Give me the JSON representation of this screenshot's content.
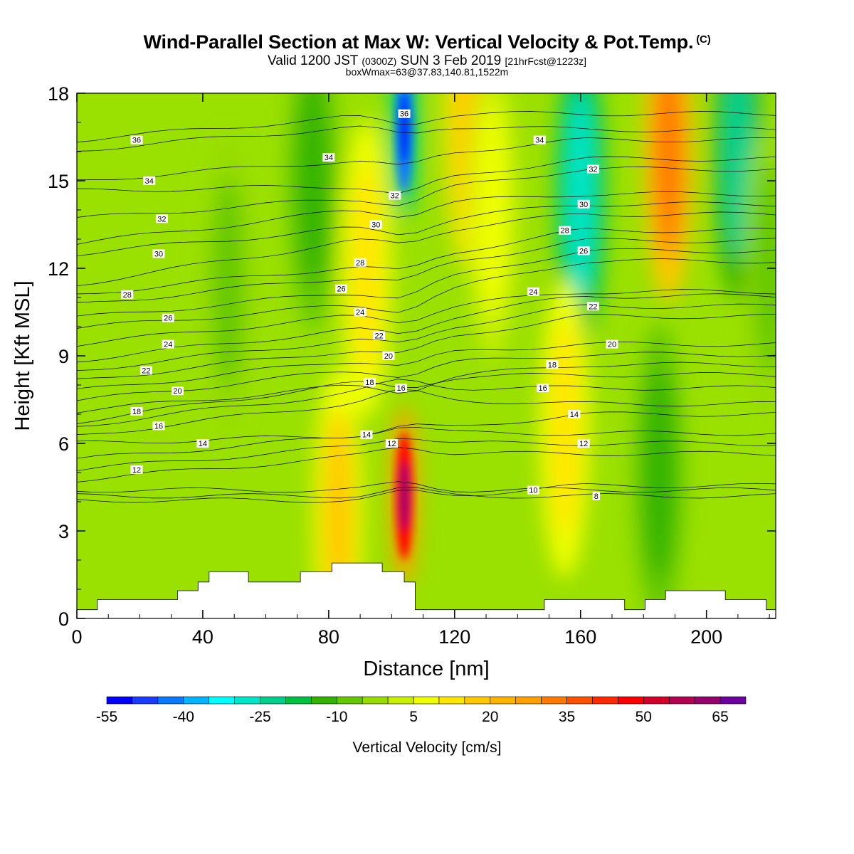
{
  "title": {
    "main": "Wind-Parallel Section at Max W: Vertical Velocity & Pot.Temp.",
    "copyright": "(C)",
    "valid_prefix": "Valid 1200 JST",
    "utc_time": "(0300Z)",
    "valid_suffix": "SUN 3 Feb 2019",
    "forecast": "[21hrFcst@1223z]",
    "box": "boxWmax=63@37.83,140.81,1522m"
  },
  "chart_data": {
    "type": "heatmap",
    "xlabel": "Distance [nm]",
    "ylabel": "Height [Kft MSL]",
    "xlim": [
      0,
      222
    ],
    "ylim": [
      0,
      18
    ],
    "x_ticks": [
      0,
      40,
      80,
      120,
      160,
      200
    ],
    "y_ticks": [
      0,
      3,
      6,
      9,
      12,
      15,
      18
    ],
    "colorbar": {
      "label": "Vertical Velocity [cm/s]",
      "levels": [
        -55,
        -50,
        -45,
        -40,
        -35,
        -30,
        -25,
        -20,
        -15,
        -10,
        -5,
        0,
        5,
        10,
        15,
        20,
        25,
        30,
        35,
        40,
        45,
        50,
        55,
        60,
        65,
        70
      ],
      "tick_labels": [
        "-55",
        "-40",
        "-25",
        "-10",
        "5",
        "20",
        "35",
        "50",
        "65"
      ],
      "colors": [
        "#0000ff",
        "#1a3cff",
        "#0a78ff",
        "#00b4ff",
        "#00ffff",
        "#00e6c8",
        "#00d08c",
        "#00c040",
        "#32b400",
        "#64c800",
        "#96dc00",
        "#c8f000",
        "#f0ff00",
        "#ffe600",
        "#ffc800",
        "#ffb400",
        "#ffa000",
        "#ff7800",
        "#ff5000",
        "#ff2800",
        "#ff0000",
        "#d20028",
        "#b40050",
        "#96006e",
        "#6e00a0"
      ]
    },
    "w_max": 63,
    "vertical_velocity_features": [
      {
        "x": 104,
        "y": 4.2,
        "w": 63
      },
      {
        "x": 104,
        "y": 16.8,
        "w": -55
      },
      {
        "x": 160,
        "y": 14.5,
        "w": -40
      },
      {
        "x": 188,
        "y": 16.0,
        "w": 40
      },
      {
        "x": 48,
        "y": 11.5,
        "w": -10
      },
      {
        "x": 75,
        "y": 15.0,
        "w": -15
      },
      {
        "x": 92,
        "y": 12.0,
        "w": 15
      },
      {
        "x": 210,
        "y": 16.0,
        "w": -30
      },
      {
        "x": 185,
        "y": 5.0,
        "w": -15
      },
      {
        "x": 83,
        "y": 3.5,
        "w": 20
      },
      {
        "x": 125,
        "y": 17.0,
        "w": 25
      },
      {
        "x": 155,
        "y": 6.5,
        "w": 15
      },
      {
        "x": 132,
        "y": 14.0,
        "w": 10
      },
      {
        "x": 220,
        "y": 12.0,
        "w": -10
      }
    ],
    "theta_contour_labels": [
      {
        "x": 19,
        "y": 16.4,
        "label": "36"
      },
      {
        "x": 23,
        "y": 15.0,
        "label": "34"
      },
      {
        "x": 27,
        "y": 13.7,
        "label": "32"
      },
      {
        "x": 26,
        "y": 12.5,
        "label": "30"
      },
      {
        "x": 16,
        "y": 11.1,
        "label": "28"
      },
      {
        "x": 29,
        "y": 10.3,
        "label": "26"
      },
      {
        "x": 29,
        "y": 9.4,
        "label": "24"
      },
      {
        "x": 22,
        "y": 8.5,
        "label": "22"
      },
      {
        "x": 32,
        "y": 7.8,
        "label": "20"
      },
      {
        "x": 19,
        "y": 7.1,
        "label": "18"
      },
      {
        "x": 26,
        "y": 6.6,
        "label": "16"
      },
      {
        "x": 40,
        "y": 6.0,
        "label": "14"
      },
      {
        "x": 19,
        "y": 5.1,
        "label": "12"
      },
      {
        "x": 104,
        "y": 17.3,
        "label": "36"
      },
      {
        "x": 80,
        "y": 15.8,
        "label": "34"
      },
      {
        "x": 101,
        "y": 14.5,
        "label": "32"
      },
      {
        "x": 95,
        "y": 13.5,
        "label": "30"
      },
      {
        "x": 90,
        "y": 12.2,
        "label": "28"
      },
      {
        "x": 84,
        "y": 11.3,
        "label": "26"
      },
      {
        "x": 90,
        "y": 10.5,
        "label": "24"
      },
      {
        "x": 96,
        "y": 9.7,
        "label": "22"
      },
      {
        "x": 99,
        "y": 9.0,
        "label": "20"
      },
      {
        "x": 93,
        "y": 8.1,
        "label": "18"
      },
      {
        "x": 103,
        "y": 7.9,
        "label": "16"
      },
      {
        "x": 92,
        "y": 6.3,
        "label": "14"
      },
      {
        "x": 100,
        "y": 6.0,
        "label": "12"
      },
      {
        "x": 147,
        "y": 16.4,
        "label": "34"
      },
      {
        "x": 164,
        "y": 15.4,
        "label": "32"
      },
      {
        "x": 161,
        "y": 14.2,
        "label": "30"
      },
      {
        "x": 155,
        "y": 13.3,
        "label": "28"
      },
      {
        "x": 161,
        "y": 12.6,
        "label": "26"
      },
      {
        "x": 145,
        "y": 11.2,
        "label": "24"
      },
      {
        "x": 164,
        "y": 10.7,
        "label": "22"
      },
      {
        "x": 170,
        "y": 9.4,
        "label": "20"
      },
      {
        "x": 151,
        "y": 8.7,
        "label": "18"
      },
      {
        "x": 148,
        "y": 7.9,
        "label": "16"
      },
      {
        "x": 158,
        "y": 7.0,
        "label": "14"
      },
      {
        "x": 161,
        "y": 6.0,
        "label": "12"
      },
      {
        "x": 145,
        "y": 4.4,
        "label": "10"
      },
      {
        "x": 165,
        "y": 4.2,
        "label": "8"
      }
    ],
    "terrain": [
      [
        0,
        0.3
      ],
      [
        6.5,
        0.3
      ],
      [
        6.5,
        0.65
      ],
      [
        32,
        0.65
      ],
      [
        32,
        0.95
      ],
      [
        38.5,
        0.95
      ],
      [
        38.5,
        1.25
      ],
      [
        42,
        1.25
      ],
      [
        42,
        1.6
      ],
      [
        54.5,
        1.6
      ],
      [
        54.5,
        1.25
      ],
      [
        71,
        1.25
      ],
      [
        71,
        1.6
      ],
      [
        81,
        1.6
      ],
      [
        81,
        1.9
      ],
      [
        97,
        1.9
      ],
      [
        97,
        1.6
      ],
      [
        104,
        1.6
      ],
      [
        104,
        1.25
      ],
      [
        107.5,
        1.25
      ],
      [
        107.5,
        0.3
      ],
      [
        148.5,
        0.3
      ],
      [
        148.5,
        0.65
      ],
      [
        174,
        0.65
      ],
      [
        174,
        0.3
      ],
      [
        180.5,
        0.3
      ],
      [
        180.5,
        0.65
      ],
      [
        187,
        0.65
      ],
      [
        187,
        0.95
      ],
      [
        206,
        0.95
      ],
      [
        206,
        0.65
      ],
      [
        219,
        0.65
      ],
      [
        219,
        0.3
      ],
      [
        222,
        0.3
      ]
    ]
  }
}
